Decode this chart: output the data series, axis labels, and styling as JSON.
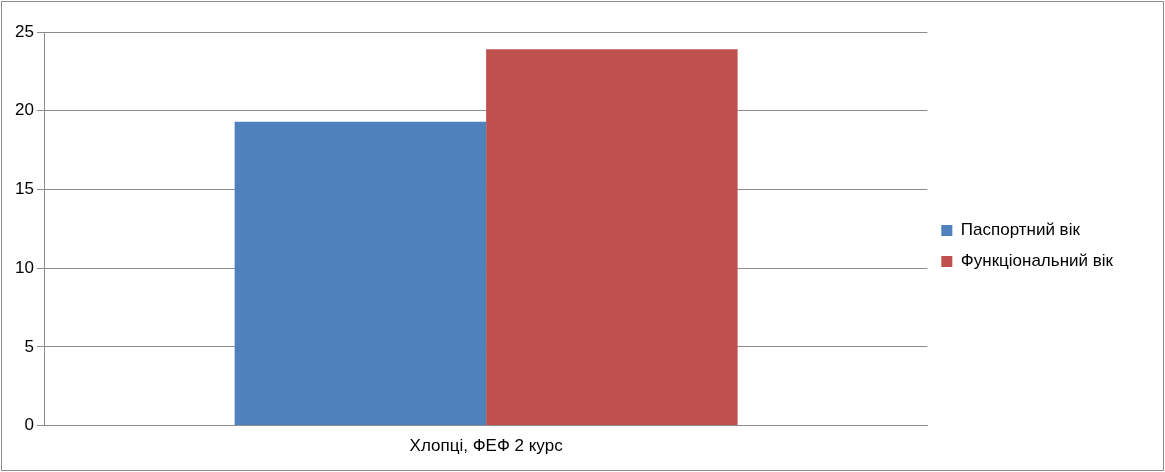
{
  "chart_data": {
    "type": "bar",
    "categories": [
      "Хлопці, ФЕФ 2 курс"
    ],
    "series": [
      {
        "name": "Паспортний вік",
        "color": "#4f81bd",
        "values": [
          19.3
        ]
      },
      {
        "name": "Функціональний вік",
        "color": "#c0504d",
        "values": [
          23.9
        ]
      }
    ],
    "ylim": [
      0,
      25
    ],
    "yticks": [
      0,
      5,
      10,
      15,
      20,
      25
    ],
    "grid": "y",
    "legend": "right"
  }
}
